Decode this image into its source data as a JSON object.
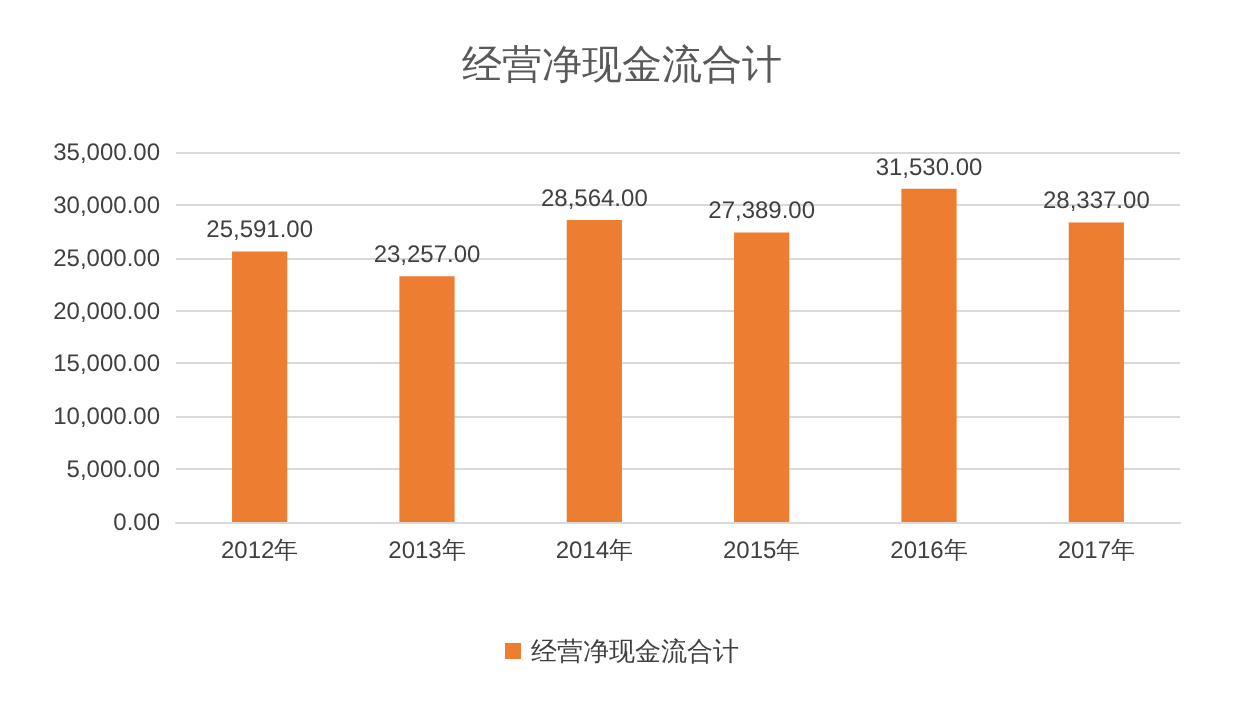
{
  "chart_data": {
    "type": "bar",
    "title": "经营净现金流合计",
    "categories": [
      "2012年",
      "2013年",
      "2014年",
      "2015年",
      "2016年",
      "2017年"
    ],
    "series": [
      {
        "name": "经营净现金流合计",
        "color": "#ed7d31",
        "values": [
          25591,
          23257,
          28564,
          27389,
          31530,
          28337
        ],
        "value_labels": [
          "25,591.00",
          "23,257.00",
          "28,564.00",
          "27,389.00",
          "31,530.00",
          "28,337.00"
        ]
      }
    ],
    "ylim": [
      0,
      35000
    ],
    "yticks": [
      {
        "value": 0,
        "label": "0.00"
      },
      {
        "value": 5000,
        "label": "5,000.00"
      },
      {
        "value": 10000,
        "label": "10,000.00"
      },
      {
        "value": 15000,
        "label": "15,000.00"
      },
      {
        "value": 20000,
        "label": "20,000.00"
      },
      {
        "value": 25000,
        "label": "25,000.00"
      },
      {
        "value": 30000,
        "label": "30,000.00"
      },
      {
        "value": 35000,
        "label": "35,000.00"
      }
    ],
    "grid": "y",
    "legend": "bottom"
  }
}
